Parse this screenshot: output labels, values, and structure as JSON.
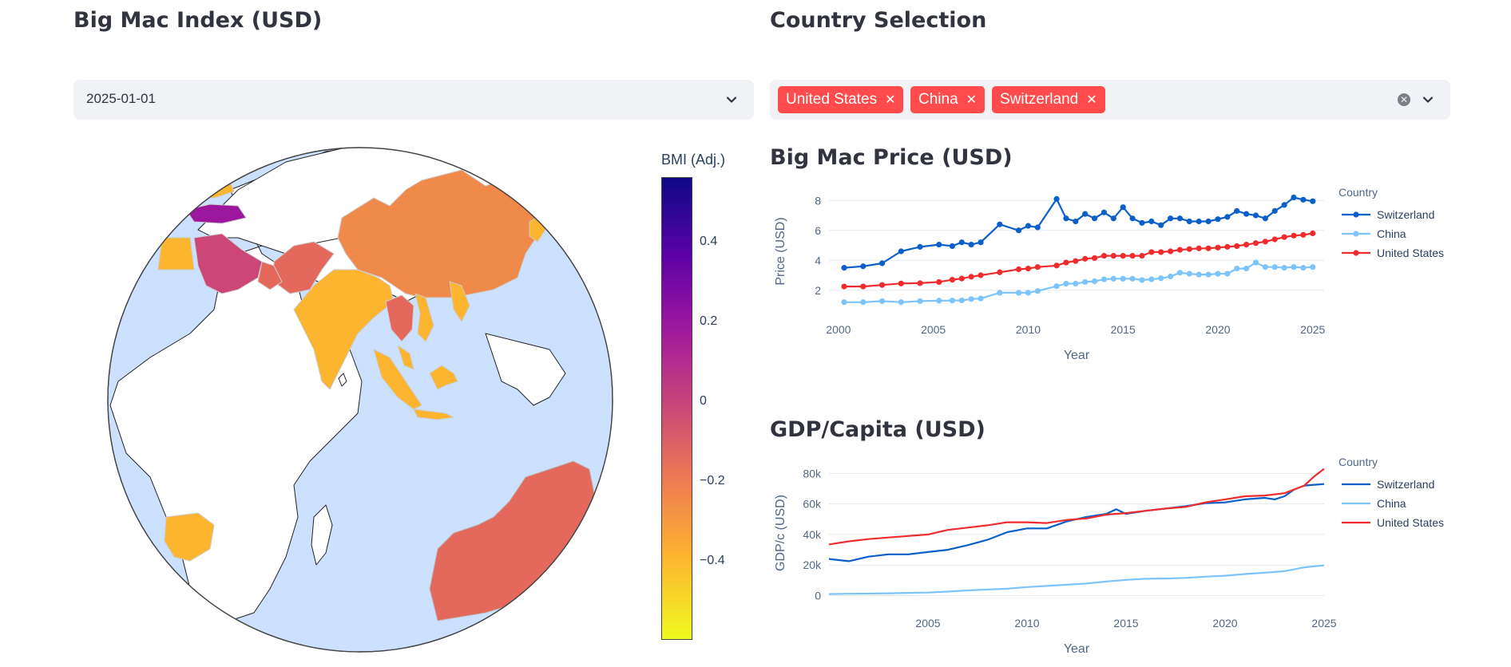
{
  "left": {
    "title": "Big Mac Index (USD)",
    "date_select": {
      "value": "2025-01-01"
    },
    "map": {
      "colorbar_title": "BMI (Adj.)",
      "colorbar_ticks": [
        "0.4",
        "0.2",
        "0",
        "−0.2",
        "−0.4"
      ],
      "colorscale": [
        "#f0f921",
        "#fdb42f",
        "#ed7953",
        "#cc4778",
        "#9c179e",
        "#5c01a6",
        "#0d0887"
      ],
      "ocean_color": "#cce0ff",
      "land_color": "#ffffff"
    }
  },
  "right": {
    "title": "Country Selection",
    "country_select": {
      "tags": [
        "United States",
        "China",
        "Switzerland"
      ]
    },
    "price_chart_title": "Big Mac Price (USD)",
    "gdp_chart_title": "GDP/Capita (USD)"
  },
  "colors": {
    "switzerland": "#0a5fc9",
    "china": "#7cc4fa",
    "united_states": "#ef2b2d",
    "tag_red": "#ff4b4b"
  },
  "chart_data": [
    {
      "type": "line",
      "title": "Big Mac Price (USD)",
      "xlabel": "Year",
      "ylabel": "Price (USD)",
      "xlim": [
        1999.5,
        2025.6
      ],
      "ylim": [
        0.6,
        8.6
      ],
      "xticks": [
        2000,
        2005,
        2010,
        2015,
        2020,
        2025
      ],
      "yticks": [
        2,
        4,
        6,
        8
      ],
      "legend_title": "Country",
      "legend_position": "right",
      "markers": true,
      "series": [
        {
          "name": "Switzerland",
          "color": "#0a5fc9",
          "x": [
            2000.3,
            2001.3,
            2002.3,
            2003.3,
            2004.3,
            2005.3,
            2006,
            2006.5,
            2007,
            2007.5,
            2008.5,
            2009.5,
            2010,
            2010.5,
            2011.5,
            2012,
            2012.5,
            2013,
            2013.5,
            2014,
            2014.5,
            2015,
            2015.5,
            2016,
            2016.5,
            2017,
            2017.5,
            2018,
            2018.5,
            2019,
            2019.5,
            2020,
            2020.5,
            2021,
            2021.5,
            2022,
            2022.5,
            2023,
            2023.5,
            2024,
            2024.5,
            2025
          ],
          "y": [
            3.5,
            3.6,
            3.8,
            4.6,
            4.9,
            5.05,
            4.95,
            5.2,
            5.05,
            5.2,
            6.4,
            6.0,
            6.3,
            6.2,
            8.1,
            6.8,
            6.6,
            7.1,
            6.8,
            7.2,
            6.8,
            7.55,
            6.8,
            6.5,
            6.6,
            6.35,
            6.8,
            6.8,
            6.6,
            6.6,
            6.6,
            6.75,
            6.9,
            7.3,
            7.1,
            7.0,
            6.8,
            7.3,
            7.7,
            8.2,
            8.05,
            7.95
          ]
        },
        {
          "name": "China",
          "color": "#7cc4fa",
          "x": [
            2000.3,
            2001.3,
            2002.3,
            2003.3,
            2004.3,
            2005.3,
            2006,
            2006.5,
            2007,
            2007.5,
            2008.5,
            2009.5,
            2010,
            2010.5,
            2011.5,
            2012,
            2012.5,
            2013,
            2013.5,
            2014,
            2014.5,
            2015,
            2015.5,
            2016,
            2016.5,
            2017,
            2017.5,
            2018,
            2018.5,
            2019,
            2019.5,
            2020,
            2020.5,
            2021,
            2021.5,
            2022,
            2022.5,
            2023,
            2023.5,
            2024,
            2024.5,
            2025
          ],
          "y": [
            1.2,
            1.2,
            1.27,
            1.2,
            1.27,
            1.3,
            1.31,
            1.32,
            1.41,
            1.45,
            1.83,
            1.83,
            1.83,
            1.95,
            2.27,
            2.44,
            2.44,
            2.55,
            2.6,
            2.73,
            2.77,
            2.77,
            2.77,
            2.68,
            2.73,
            2.8,
            2.92,
            3.17,
            3.1,
            3.05,
            3.05,
            3.1,
            3.1,
            3.45,
            3.45,
            3.85,
            3.55,
            3.55,
            3.5,
            3.55,
            3.5,
            3.55
          ]
        },
        {
          "name": "United States",
          "color": "#ef2b2d",
          "x": [
            2000.3,
            2001.3,
            2002.3,
            2003.3,
            2004.3,
            2005.3,
            2006,
            2006.5,
            2007,
            2007.5,
            2008.5,
            2009.5,
            2010,
            2010.5,
            2011.5,
            2012,
            2012.5,
            2013,
            2013.5,
            2014,
            2014.5,
            2015,
            2015.5,
            2016,
            2016.5,
            2017,
            2017.5,
            2018,
            2018.5,
            2019,
            2019.5,
            2020,
            2020.5,
            2021,
            2021.5,
            2022,
            2022.5,
            2023,
            2023.5,
            2024,
            2024.5,
            2025
          ],
          "y": [
            2.25,
            2.25,
            2.35,
            2.45,
            2.47,
            2.55,
            2.7,
            2.78,
            2.9,
            3.0,
            3.2,
            3.4,
            3.45,
            3.55,
            3.65,
            3.85,
            3.95,
            4.1,
            4.15,
            4.3,
            4.3,
            4.3,
            4.3,
            4.3,
            4.55,
            4.55,
            4.6,
            4.7,
            4.75,
            4.8,
            4.8,
            4.85,
            4.9,
            4.95,
            5.05,
            5.15,
            5.25,
            5.4,
            5.55,
            5.65,
            5.7,
            5.8
          ]
        }
      ]
    },
    {
      "type": "line",
      "title": "GDP/Capita (USD)",
      "xlabel": "Year",
      "ylabel": "GDP/c (USD)",
      "xlim": [
        2000,
        2025
      ],
      "ylim": [
        -6000,
        88000
      ],
      "xticks": [
        2005,
        2010,
        2015,
        2020,
        2025
      ],
      "yticks": [
        0,
        20000,
        40000,
        60000,
        80000
      ],
      "ytick_labels": [
        "0",
        "20k",
        "40k",
        "60k",
        "80k"
      ],
      "legend_title": "Country",
      "legend_position": "right",
      "markers": false,
      "series": [
        {
          "name": "Switzerland",
          "color": "#0a5fc9",
          "x": [
            2000,
            2001,
            2002,
            2003,
            2004,
            2005,
            2006,
            2007,
            2008,
            2009,
            2010,
            2011,
            2012,
            2013,
            2014,
            2014.5,
            2015,
            2016,
            2017,
            2018,
            2019,
            2020,
            2021,
            2022,
            2022.5,
            2023,
            2023.5,
            2024,
            2025
          ],
          "y": [
            24000,
            22500,
            25500,
            27000,
            27000,
            28500,
            30000,
            33000,
            36500,
            41500,
            44000,
            44000,
            48500,
            51500,
            53500,
            56500,
            53500,
            55500,
            57000,
            58500,
            60500,
            61000,
            63000,
            64000,
            63000,
            65000,
            69500,
            72000,
            73000
          ]
        },
        {
          "name": "China",
          "color": "#7cc4fa",
          "x": [
            2000,
            2001,
            2002,
            2003,
            2004,
            2005,
            2006,
            2007,
            2008,
            2009,
            2010,
            2011,
            2012,
            2013,
            2014,
            2015,
            2016,
            2017,
            2018,
            2019,
            2020,
            2021,
            2022,
            2023,
            2024,
            2025
          ],
          "y": [
            1000,
            1200,
            1300,
            1500,
            1800,
            2000,
            2600,
            3400,
            4000,
            4500,
            5600,
            6300,
            7100,
            7900,
            9200,
            10300,
            11000,
            11200,
            11600,
            12400,
            13000,
            14100,
            15000,
            16000,
            18500,
            19800
          ]
        },
        {
          "name": "United States",
          "color": "#ef2b2d",
          "x": [
            2000,
            2001,
            2002,
            2003,
            2004,
            2005,
            2006,
            2007,
            2008,
            2009,
            2010,
            2011,
            2012,
            2013,
            2014,
            2015,
            2016,
            2017,
            2018,
            2019,
            2020,
            2021,
            2022,
            2023,
            2024,
            2024.5,
            2025
          ],
          "y": [
            33500,
            35500,
            37000,
            38000,
            39000,
            40000,
            43000,
            44500,
            46000,
            48000,
            48000,
            47500,
            49500,
            50500,
            53000,
            54000,
            55500,
            57000,
            58000,
            61000,
            63000,
            65000,
            65500,
            67000,
            72000,
            78000,
            83000
          ]
        }
      ]
    }
  ]
}
